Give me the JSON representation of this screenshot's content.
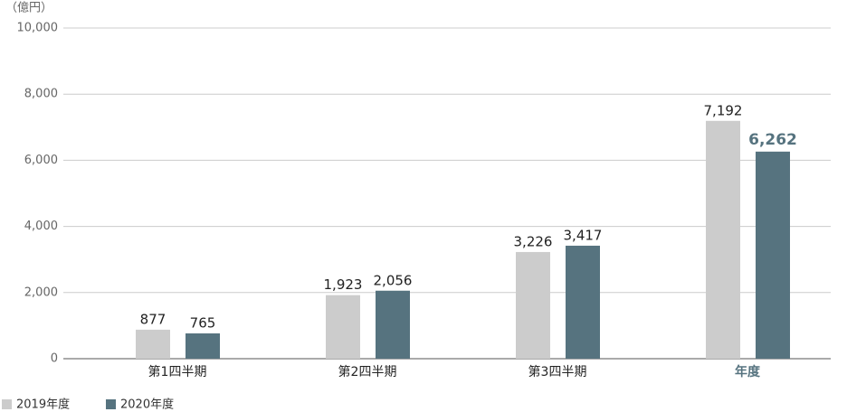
{
  "chart_data": {
    "type": "bar",
    "unit_label": "（億円）",
    "categories": [
      "第1四半期",
      "第2四半期",
      "第3四半期",
      "年度"
    ],
    "series": [
      {
        "name": "2019年度",
        "color": "#cccccc",
        "values": [
          877,
          1923,
          3226,
          7192
        ],
        "value_labels": [
          "877",
          "1,923",
          "3,226",
          "7,192"
        ]
      },
      {
        "name": "2020年度",
        "color": "#56737f",
        "values": [
          765,
          2056,
          3417,
          6262
        ],
        "value_labels": [
          "765",
          "2,056",
          "3,417",
          "6,262"
        ]
      }
    ],
    "ylim": [
      0,
      10000
    ],
    "yticks": [
      0,
      {
        "value": 2000,
        "label": "2,000"
      },
      {
        "value": 4000,
        "label": "4,000"
      },
      {
        "value": 6000,
        "label": "6,000"
      },
      {
        "value": 8000,
        "label": "8,000"
      },
      {
        "value": 10000,
        "label": "10,000"
      }
    ],
    "grid": true
  }
}
